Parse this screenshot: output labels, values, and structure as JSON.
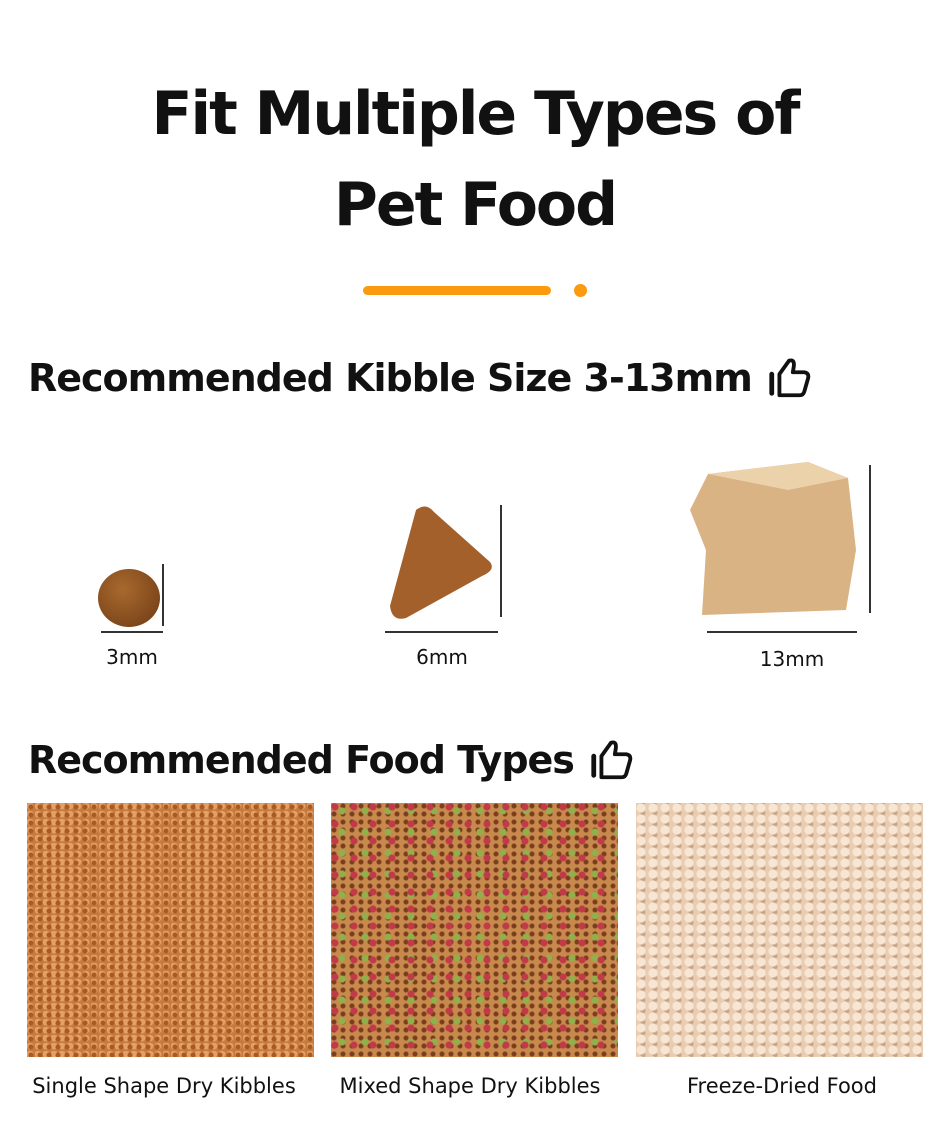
{
  "title": {
    "line1": "Fit Multiple Types of",
    "line2": "Pet Food"
  },
  "accent_color": "#fb9a0e",
  "kibble_section": {
    "heading": "Recommended Kibble Size 3-13mm",
    "icon": "thumbs-up-icon",
    "sizes": [
      {
        "label": "3mm"
      },
      {
        "label": "6mm"
      },
      {
        "label": "13mm"
      }
    ]
  },
  "food_section": {
    "heading": "Recommended Food Types",
    "icon": "thumbs-up-icon",
    "types": [
      {
        "caption": "Single Shape Dry Kibbles"
      },
      {
        "caption": "Mixed Shape Dry Kibbles"
      },
      {
        "caption": "Freeze-Dried Food"
      }
    ]
  }
}
